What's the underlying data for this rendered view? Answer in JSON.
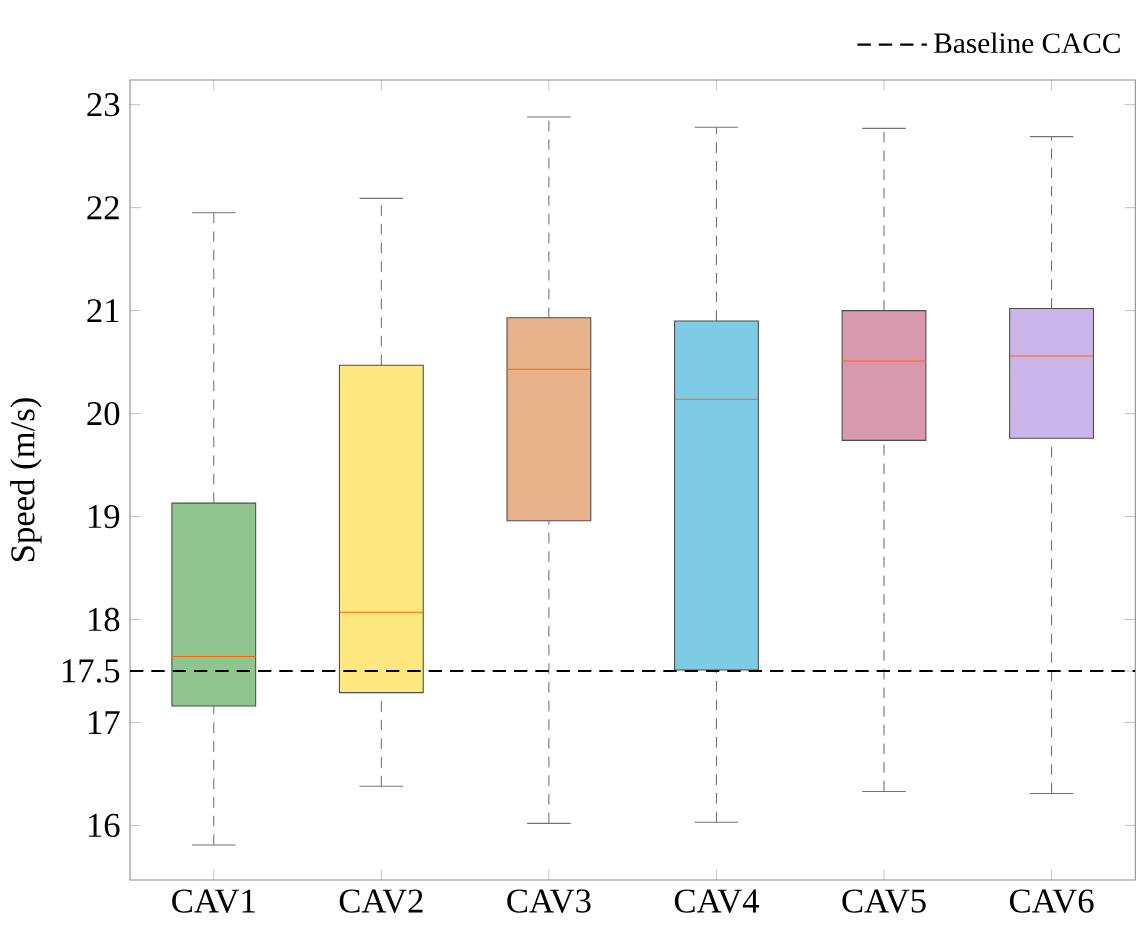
{
  "chart_data": {
    "type": "box",
    "ylabel": "Speed (m/s)",
    "categories": [
      "CAV1",
      "CAV2",
      "CAV3",
      "CAV4",
      "CAV5",
      "CAV6"
    ],
    "colors": [
      "#8fc68f",
      "#fde77e",
      "#e8b38b",
      "#7ecbe5",
      "#d898ad",
      "#c9b5ea"
    ],
    "boxes": [
      {
        "low": 15.81,
        "q1": 17.16,
        "median": 17.64,
        "q3": 19.13,
        "high": 21.95
      },
      {
        "low": 16.38,
        "q1": 17.29,
        "median": 18.07,
        "q3": 20.47,
        "high": 22.09
      },
      {
        "low": 16.02,
        "q1": 18.96,
        "median": 20.43,
        "q3": 20.93,
        "high": 22.88
      },
      {
        "low": 16.03,
        "q1": 17.51,
        "median": 20.14,
        "q3": 20.9,
        "high": 22.78
      },
      {
        "low": 16.33,
        "q1": 19.74,
        "median": 20.51,
        "q3": 21.0,
        "high": 22.77
      },
      {
        "low": 16.31,
        "q1": 19.76,
        "median": 20.56,
        "q3": 21.02,
        "high": 22.69
      }
    ],
    "ylim": [
      15.47,
      23.24
    ],
    "yticks": [
      16,
      17,
      17.5,
      18,
      19,
      20,
      21,
      22,
      23
    ],
    "ref_lines": [
      {
        "axis": "y",
        "value": 17.5,
        "label": "Baseline CACC",
        "color": "#000000",
        "line_style": "dashed"
      }
    ],
    "legend": "top right",
    "grid": false
  }
}
